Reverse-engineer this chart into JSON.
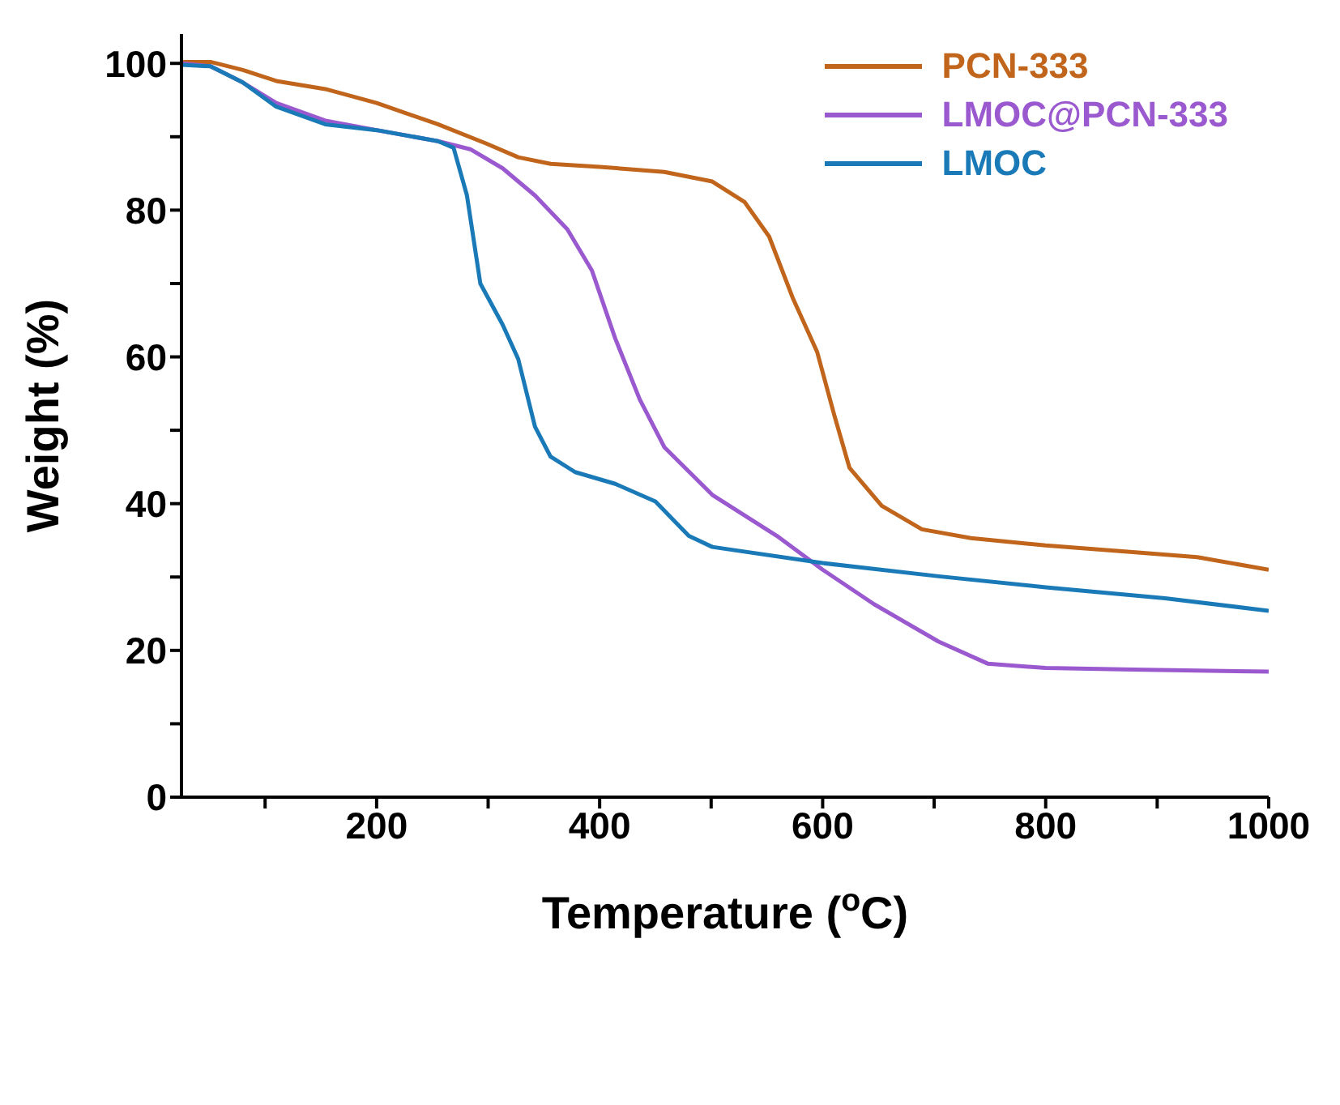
{
  "chart_data": {
    "type": "line",
    "xlabel": "Temperature ($^{o}$C)",
    "ylabel": "Weight (%)",
    "xlim": [
      25,
      1000
    ],
    "ylim": [
      0,
      104
    ],
    "xticks": [
      {
        "value": 100,
        "label": null
      },
      200,
      {
        "value": 300,
        "label": null
      },
      400,
      {
        "value": 500,
        "label": null
      },
      600,
      {
        "value": 700,
        "label": null
      },
      800,
      {
        "value": 900,
        "label": null
      },
      1000
    ],
    "yticks": [
      0,
      {
        "value": 10,
        "label": null
      },
      20,
      {
        "value": 30,
        "label": null
      },
      40,
      {
        "value": 50,
        "label": null
      },
      60,
      {
        "value": 70,
        "label": null
      },
      80,
      {
        "value": 90,
        "label": null
      },
      100
    ],
    "grid": false,
    "legend": "top right",
    "marker": "none",
    "line_style": "solid",
    "series": [
      {
        "name": "PCN-333",
        "color": "#c0651b",
        "x": [
          25,
          51,
          80,
          110,
          154,
          200,
          255,
          298,
          327,
          356,
          400,
          458,
          501,
          530,
          552,
          573,
          595,
          610,
          624,
          653,
          689,
          733,
          800,
          878,
          936,
          1000
        ],
        "values": [
          100.2,
          100.2,
          99.1,
          97.6,
          96.5,
          94.6,
          91.7,
          89.1,
          87.2,
          86.3,
          85.9,
          85.2,
          83.9,
          81.1,
          76.4,
          68.1,
          60.7,
          52.3,
          44.9,
          39.7,
          36.5,
          35.3,
          34.3,
          33.4,
          32.7,
          31.0
        ]
      },
      {
        "name": "LMOC@PCN-333",
        "color": "#9b59d0",
        "x": [
          25,
          51,
          80,
          110,
          154,
          200,
          255,
          284,
          313,
          342,
          371,
          393,
          414,
          436,
          458,
          501,
          559,
          600,
          646,
          704,
          748,
          800,
          878,
          1000
        ],
        "values": [
          100,
          99.6,
          97.4,
          94.6,
          92.2,
          90.9,
          89.4,
          88.3,
          85.7,
          82,
          77.4,
          71.8,
          62.5,
          54.2,
          47.7,
          41.2,
          35.6,
          31,
          26.3,
          21.2,
          18.2,
          17.6,
          17.4,
          17.1
        ]
      },
      {
        "name": "LMOC",
        "color": "#1a7ab8",
        "x": [
          25,
          51,
          80,
          110,
          154,
          200,
          255,
          269,
          281,
          293,
          313,
          327,
          342,
          356,
          378,
          414,
          450,
          480,
          501,
          600,
          704,
          800,
          907,
          1000
        ],
        "values": [
          99.8,
          99.6,
          97.4,
          94.1,
          91.7,
          90.9,
          89.4,
          88.5,
          82,
          70,
          64.4,
          59.7,
          50.5,
          46.4,
          44.3,
          42.7,
          40.3,
          35.6,
          34.1,
          31.9,
          30.1,
          28.6,
          27.1,
          25.4
        ]
      }
    ]
  }
}
